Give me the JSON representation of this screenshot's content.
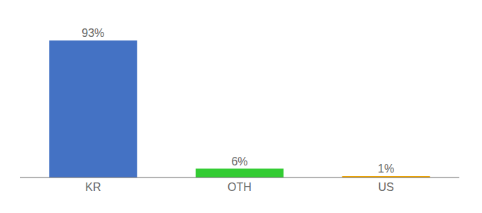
{
  "chart_data": {
    "type": "bar",
    "categories": [
      "KR",
      "OTH",
      "US"
    ],
    "values": [
      93,
      6,
      1
    ],
    "value_labels": [
      "93%",
      "6%",
      "1%"
    ],
    "colors": [
      "#4472c4",
      "#33cc33",
      "#f0a500"
    ],
    "ylim": [
      0,
      105
    ],
    "data_labels": true,
    "tick_labels": "x",
    "grid": false
  }
}
